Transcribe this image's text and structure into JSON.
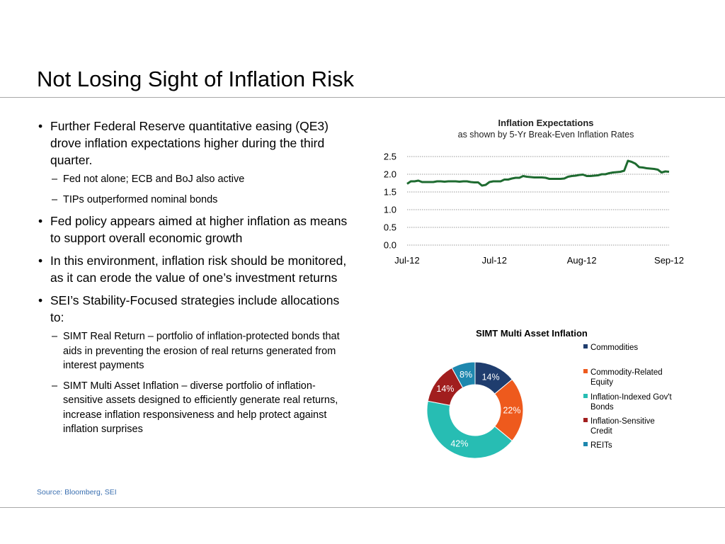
{
  "slide": {
    "title": "Not Losing Sight of Inflation Risk",
    "source": "Source: Bloomberg, SEI"
  },
  "bullets": [
    {
      "text": "Further Federal Reserve quantitative easing (QE3) drove inflation expectations higher during the third quarter.",
      "sub": [
        "Fed not alone; ECB and BoJ also active",
        "TIPs outperformed nominal bonds"
      ]
    },
    {
      "text": "Fed policy appears aimed at higher inflation as means to support overall economic growth",
      "sub": []
    },
    {
      "text": "In this environment, inflation risk should be monitored, as it can erode the value of one’s investment returns",
      "sub": []
    },
    {
      "text": "SEI’s Stability-Focused strategies include allocations to:",
      "sub": [
        "SIMT Real Return – portfolio of inflation-protected bonds that aids in preventing the erosion of real returns generated from interest payments",
        "SIMT Multi Asset Inflation – diverse portfolio of inflation-sensitive assets designed to efficiently generate real returns, increase inflation responsiveness and help protect against inflation surprises"
      ]
    }
  ],
  "chart_data": [
    {
      "type": "line",
      "title": "Inflation Expectations",
      "subtitle": "as shown by 5-Yr Break-Even Inflation Rates",
      "xlabel": "",
      "ylabel": "",
      "x_tick_labels": [
        "Jul-12",
        "Jul-12",
        "Aug-12",
        "Sep-12"
      ],
      "y_ticks": [
        "0.0",
        "0.5",
        "1.0",
        "1.5",
        "2.0",
        "2.5"
      ],
      "ylim": [
        0,
        2.5
      ],
      "grid": "horizontal-dotted",
      "legend": "none",
      "color": "#1e6b30",
      "series": [
        {
          "values": [
            1.73,
            1.8,
            1.8,
            1.82,
            1.78,
            1.78,
            1.78,
            1.78,
            1.8,
            1.8,
            1.79,
            1.8,
            1.8,
            1.8,
            1.79,
            1.8,
            1.8,
            1.78,
            1.77,
            1.77,
            1.68,
            1.7,
            1.78,
            1.8,
            1.8,
            1.8,
            1.85,
            1.85,
            1.88,
            1.9,
            1.9,
            1.95,
            1.93,
            1.92,
            1.91,
            1.91,
            1.91,
            1.9,
            1.87,
            1.87,
            1.87,
            1.87,
            1.88,
            1.93,
            1.95,
            1.96,
            1.98,
            1.99,
            1.95,
            1.95,
            1.96,
            1.97,
            2.0,
            2.0,
            2.03,
            2.05,
            2.06,
            2.07,
            2.1,
            2.38,
            2.35,
            2.3,
            2.2,
            2.19,
            2.17,
            2.16,
            2.15,
            2.13,
            2.05,
            2.08,
            2.07
          ]
        }
      ]
    },
    {
      "type": "pie",
      "style": "donut",
      "title": "SIMT Multi Asset Inflation",
      "legend": "right",
      "slices": [
        {
          "label": "Commodities",
          "value": 14,
          "display": "14%",
          "color": "#1f3d6e"
        },
        {
          "label": "Commodity-Related Equity",
          "value": 22,
          "display": "22%",
          "color": "#ee5a1d"
        },
        {
          "label": "Inflation-Indexed Gov't Bonds",
          "value": 42,
          "display": "42%",
          "color": "#27bdb3"
        },
        {
          "label": "Inflation-Sensitive Credit",
          "value": 14,
          "display": "14%",
          "color": "#a11e1e"
        },
        {
          "label": "REITs",
          "value": 8,
          "display": "8%",
          "color": "#1e87ae"
        }
      ]
    }
  ]
}
